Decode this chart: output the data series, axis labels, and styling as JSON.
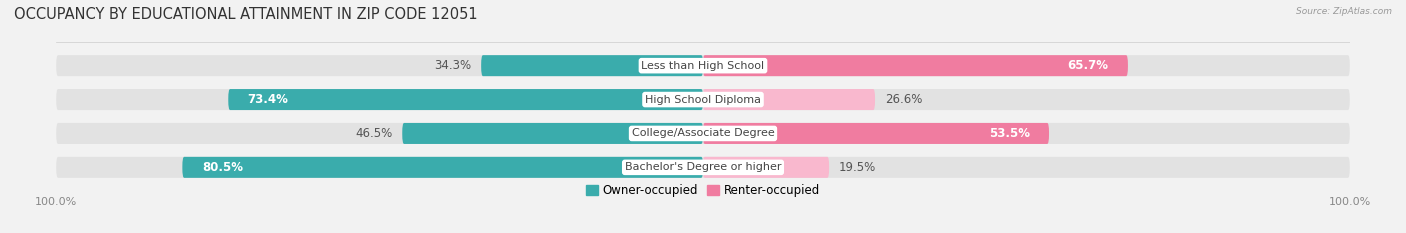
{
  "title": "OCCUPANCY BY EDUCATIONAL ATTAINMENT IN ZIP CODE 12051",
  "source": "Source: ZipAtlas.com",
  "categories": [
    "Less than High School",
    "High School Diploma",
    "College/Associate Degree",
    "Bachelor's Degree or higher"
  ],
  "owner_pct": [
    34.3,
    73.4,
    46.5,
    80.5
  ],
  "renter_pct": [
    65.7,
    26.6,
    53.5,
    19.5
  ],
  "owner_color": "#3AACAC",
  "renter_color": "#F07CA0",
  "renter_color_light": "#F9B8CE",
  "bg_color": "#f2f2f2",
  "bar_bg_color": "#e2e2e2",
  "bar_height": 0.62,
  "title_fontsize": 10.5,
  "label_fontsize": 8.5,
  "legend_fontsize": 8.5,
  "axis_label_fontsize": 8
}
